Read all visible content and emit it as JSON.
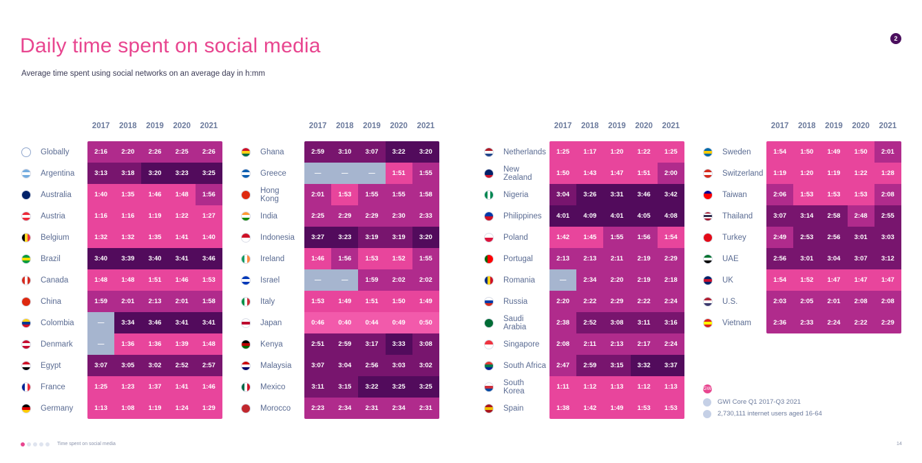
{
  "title": "Daily time spent on social media",
  "subtitle": "Average time spent using social networks on an average day in h:mm",
  "page_badge": "2",
  "colors": {
    "light": "#e8459c",
    "medium": "#b02b8c",
    "dark": "#78156e",
    "darkest": "#520b5c",
    "none": "#a6b5cf",
    "japan": "#f25aab",
    "title": "#e8458f"
  },
  "chart_data": {
    "type": "table",
    "title": "Daily time spent on social media",
    "subtitle": "Average time spent using social networks on an average day in h:mm",
    "columns": [
      "2017",
      "2018",
      "2019",
      "2020",
      "2021"
    ],
    "groups": [
      {
        "rows": [
          {
            "country": "Globally",
            "flag": "globe",
            "values": [
              "2:16",
              "2:20",
              "2:26",
              "2:25",
              "2:26"
            ]
          },
          {
            "country": "Argentina",
            "flag": "argentina",
            "values": [
              "3:13",
              "3:18",
              "3:20",
              "3:23",
              "3:25"
            ]
          },
          {
            "country": "Australia",
            "flag": "australia",
            "values": [
              "1:40",
              "1:35",
              "1:46",
              "1:48",
              "1:56"
            ]
          },
          {
            "country": "Austria",
            "flag": "austria",
            "values": [
              "1:16",
              "1:16",
              "1:19",
              "1:22",
              "1:27"
            ]
          },
          {
            "country": "Belgium",
            "flag": "belgium",
            "values": [
              "1:32",
              "1:32",
              "1:35",
              "1:41",
              "1:40"
            ]
          },
          {
            "country": "Brazil",
            "flag": "brazil",
            "values": [
              "3:40",
              "3:39",
              "3:40",
              "3:41",
              "3:46"
            ]
          },
          {
            "country": "Canada",
            "flag": "canada",
            "values": [
              "1:48",
              "1:48",
              "1:51",
              "1:46",
              "1:53"
            ]
          },
          {
            "country": "China",
            "flag": "china",
            "values": [
              "1:59",
              "2:01",
              "2:13",
              "2:01",
              "1:58"
            ]
          },
          {
            "country": "Colombia",
            "flag": "colombia",
            "values": [
              "—",
              "3:34",
              "3:46",
              "3:41",
              "3:41"
            ]
          },
          {
            "country": "Denmark",
            "flag": "denmark",
            "values": [
              "—",
              "1:36",
              "1:36",
              "1:39",
              "1:48"
            ]
          },
          {
            "country": "Egypt",
            "flag": "egypt",
            "values": [
              "3:07",
              "3:05",
              "3:02",
              "2:52",
              "2:57"
            ]
          },
          {
            "country": "France",
            "flag": "france",
            "values": [
              "1:25",
              "1:23",
              "1:37",
              "1:41",
              "1:46"
            ]
          },
          {
            "country": "Germany",
            "flag": "germany",
            "values": [
              "1:13",
              "1:08",
              "1:19",
              "1:24",
              "1:29"
            ]
          }
        ]
      },
      {
        "rows": [
          {
            "country": "Ghana",
            "flag": "ghana",
            "values": [
              "2:59",
              "3:10",
              "3:07",
              "3:22",
              "3:20"
            ]
          },
          {
            "country": "Greece",
            "flag": "greece",
            "values": [
              "—",
              "—",
              "—",
              "1:51",
              "1:55"
            ]
          },
          {
            "country": "Hong Kong",
            "flag": "hongkong",
            "values": [
              "2:01",
              "1:53",
              "1:55",
              "1:55",
              "1:58"
            ]
          },
          {
            "country": "India",
            "flag": "india",
            "values": [
              "2:25",
              "2:29",
              "2:29",
              "2:30",
              "2:33"
            ]
          },
          {
            "country": "Indonesia",
            "flag": "indonesia",
            "values": [
              "3:27",
              "3:23",
              "3:19",
              "3:19",
              "3:20"
            ]
          },
          {
            "country": "Ireland",
            "flag": "ireland",
            "values": [
              "1:46",
              "1:56",
              "1:53",
              "1:52",
              "1:55"
            ]
          },
          {
            "country": "Israel",
            "flag": "israel",
            "values": [
              "—",
              "—",
              "1:59",
              "2:02",
              "2:02"
            ]
          },
          {
            "country": "Italy",
            "flag": "italy",
            "values": [
              "1:53",
              "1:49",
              "1:51",
              "1:50",
              "1:49"
            ]
          },
          {
            "country": "Japan",
            "flag": "japan",
            "values": [
              "0:46",
              "0:40",
              "0:44",
              "0:49",
              "0:50"
            ]
          },
          {
            "country": "Kenya",
            "flag": "kenya",
            "values": [
              "2:51",
              "2:59",
              "3:17",
              "3:33",
              "3:08"
            ]
          },
          {
            "country": "Malaysia",
            "flag": "malaysia",
            "values": [
              "3:07",
              "3:04",
              "2:56",
              "3:03",
              "3:02"
            ]
          },
          {
            "country": "Mexico",
            "flag": "mexico",
            "values": [
              "3:11",
              "3:15",
              "3:22",
              "3:25",
              "3:25"
            ]
          },
          {
            "country": "Morocco",
            "flag": "morocco",
            "values": [
              "2:23",
              "2:34",
              "2:31",
              "2:34",
              "2:31"
            ]
          }
        ]
      },
      {
        "rows": [
          {
            "country": "Netherlands",
            "flag": "netherlands",
            "values": [
              "1:25",
              "1:17",
              "1:20",
              "1:22",
              "1:25"
            ]
          },
          {
            "country": "New Zealand",
            "flag": "newzealand",
            "values": [
              "1:50",
              "1:43",
              "1:47",
              "1:51",
              "2:00"
            ]
          },
          {
            "country": "Nigeria",
            "flag": "nigeria",
            "values": [
              "3:04",
              "3:26",
              "3:31",
              "3:46",
              "3:42"
            ]
          },
          {
            "country": "Philippines",
            "flag": "philippines",
            "values": [
              "4:01",
              "4:09",
              "4:01",
              "4:05",
              "4:08"
            ]
          },
          {
            "country": "Poland",
            "flag": "poland",
            "values": [
              "1:42",
              "1:45",
              "1:55",
              "1:56",
              "1:54"
            ]
          },
          {
            "country": "Portugal",
            "flag": "portugal",
            "values": [
              "2:13",
              "2:13",
              "2:11",
              "2:19",
              "2:29"
            ]
          },
          {
            "country": "Romania",
            "flag": "romania",
            "values": [
              "—",
              "2:34",
              "2:20",
              "2:19",
              "2:18"
            ]
          },
          {
            "country": "Russia",
            "flag": "russia",
            "values": [
              "2:20",
              "2:22",
              "2:29",
              "2:22",
              "2:24"
            ]
          },
          {
            "country": "Saudi Arabia",
            "flag": "saudi",
            "values": [
              "2:38",
              "2:52",
              "3:08",
              "3:11",
              "3:16"
            ]
          },
          {
            "country": "Singapore",
            "flag": "singapore",
            "values": [
              "2:08",
              "2:11",
              "2:13",
              "2:17",
              "2:24"
            ]
          },
          {
            "country": "South Africa",
            "flag": "southafrica",
            "values": [
              "2:47",
              "2:59",
              "3:15",
              "3:32",
              "3:37"
            ]
          },
          {
            "country": "South Korea",
            "flag": "southkorea",
            "values": [
              "1:11",
              "1:12",
              "1:13",
              "1:12",
              "1:13"
            ]
          },
          {
            "country": "Spain",
            "flag": "spain",
            "values": [
              "1:38",
              "1:42",
              "1:49",
              "1:53",
              "1:53"
            ]
          }
        ]
      },
      {
        "rows": [
          {
            "country": "Sweden",
            "flag": "sweden",
            "values": [
              "1:54",
              "1:50",
              "1:49",
              "1:50",
              "2:01"
            ]
          },
          {
            "country": "Switzerland",
            "flag": "switzerland",
            "values": [
              "1:19",
              "1:20",
              "1:19",
              "1:22",
              "1:28"
            ]
          },
          {
            "country": "Taiwan",
            "flag": "taiwan",
            "values": [
              "2:06",
              "1:53",
              "1:53",
              "1:53",
              "2:08"
            ]
          },
          {
            "country": "Thailand",
            "flag": "thailand",
            "values": [
              "3:07",
              "3:14",
              "2:58",
              "2:48",
              "2:55"
            ]
          },
          {
            "country": "Turkey",
            "flag": "turkey",
            "values": [
              "2:49",
              "2:53",
              "2:56",
              "3:01",
              "3:03"
            ]
          },
          {
            "country": "UAE",
            "flag": "uae",
            "values": [
              "2:56",
              "3:01",
              "3:04",
              "3:07",
              "3:12"
            ]
          },
          {
            "country": "UK",
            "flag": "uk",
            "values": [
              "1:54",
              "1:52",
              "1:47",
              "1:47",
              "1:47"
            ]
          },
          {
            "country": "U.S.",
            "flag": "us",
            "values": [
              "2:03",
              "2:05",
              "2:01",
              "2:08",
              "2:08"
            ]
          },
          {
            "country": "Vietnam",
            "flag": "vietnam",
            "values": [
              "2:36",
              "2:33",
              "2:24",
              "2:22",
              "2:29"
            ]
          }
        ]
      }
    ]
  },
  "legend": {
    "icon_label": "GWI",
    "source": "GWI Core Q1 2017-Q3 2021",
    "sample": "2,730,111 internet users aged 16-64"
  },
  "footer": {
    "section": "Time spent on social media",
    "page": "14"
  }
}
